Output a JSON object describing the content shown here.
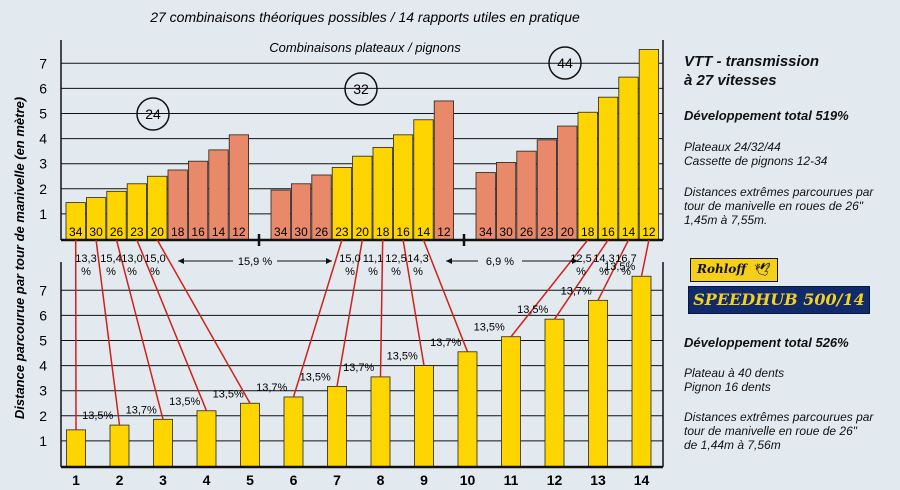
{
  "title": "27 combinaisons théoriques possibles / 14 rapports utiles en pratique",
  "top_subtitle": "Combinaisons plateaux / pignons",
  "ylabel": "Distance parcourue par tour de manivelle (en mètre)",
  "chainrings": [
    "24",
    "32",
    "44"
  ],
  "colors": {
    "useful": "#ffd500",
    "other": "#e8896a",
    "line": "#d0201c",
    "background": "#e3eaef"
  },
  "right_top": {
    "heading_line1": "VTT - transmission",
    "heading_line2": "à 27 vitesses",
    "total": "Développement total 519%",
    "spec_line1": "Plateaux 24/32/44",
    "spec_line2": "Cassette de pignons 12-34",
    "extreme_line1": "Distances extrêmes parcourues par",
    "extreme_line2": "tour de manivelle en roues de 26\"",
    "extreme_line3": "1,45m à 7,55m."
  },
  "right_bottom": {
    "logo": "Rohloff",
    "logo_icon": "bird-icon",
    "banner": "SPEEDHUB 500/14",
    "total": "Développement total 526%",
    "spec_line1": "Plateau à 40 dents",
    "spec_line2": "Pignon 16 dents",
    "extreme_line1": "Distances extrêmes parcourues par",
    "extreme_line2": "tour de manivelle en roue de 26\"",
    "extreme_line3": "de 1,44m à 7,56m"
  },
  "chart_data": [
    {
      "type": "bar",
      "name": "VTT - transmission à 27 vitesses",
      "ylim": [
        0,
        7.5
      ],
      "yticks": [
        "1",
        "2",
        "3",
        "4",
        "5",
        "6",
        "7"
      ],
      "groups": [
        {
          "chainring": "24",
          "sprockets": [
            "34",
            "30",
            "26",
            "23",
            "20",
            "18",
            "16",
            "14",
            "12"
          ],
          "values": [
            1.45,
            1.65,
            1.9,
            2.2,
            2.5,
            2.75,
            3.1,
            3.55,
            4.15
          ],
          "useful": [
            true,
            true,
            true,
            true,
            true,
            false,
            false,
            false,
            false
          ]
        },
        {
          "chainring": "32",
          "sprockets": [
            "34",
            "30",
            "26",
            "23",
            "20",
            "18",
            "16",
            "14",
            "12"
          ],
          "values": [
            1.95,
            2.2,
            2.55,
            2.85,
            3.3,
            3.65,
            4.15,
            4.75,
            5.5
          ],
          "useful": [
            false,
            false,
            false,
            true,
            true,
            true,
            true,
            true,
            false
          ]
        },
        {
          "chainring": "44",
          "sprockets": [
            "34",
            "30",
            "26",
            "23",
            "20",
            "18",
            "16",
            "14",
            "12"
          ],
          "values": [
            2.65,
            3.05,
            3.5,
            3.95,
            4.5,
            5.05,
            5.65,
            6.45,
            7.55
          ],
          "useful": [
            false,
            false,
            false,
            false,
            false,
            true,
            true,
            true,
            true
          ]
        }
      ],
      "step_labels": [
        {
          "text": "13,3\n%"
        },
        {
          "text": "15,4\n%"
        },
        {
          "text": "13,0\n%"
        },
        {
          "text": "15,0\n%"
        },
        {
          "text": "15,9 %"
        },
        {
          "text": "15,0\n%"
        },
        {
          "text": "11,1\n%"
        },
        {
          "text": "12,5\n%"
        },
        {
          "text": "14,3\n%"
        },
        {
          "text": "6,9 %"
        },
        {
          "text": "12,5\n%"
        },
        {
          "text": "14,3\n%"
        },
        {
          "text": "16,7\n%"
        }
      ]
    },
    {
      "type": "bar",
      "name": "SPEEDHUB 500/14",
      "ylim": [
        0,
        7.5
      ],
      "yticks": [
        "1",
        "2",
        "3",
        "4",
        "5",
        "6",
        "7"
      ],
      "categories": [
        "1",
        "2",
        "3",
        "4",
        "5",
        "6",
        "7",
        "8",
        "9",
        "10",
        "11",
        "12",
        "13",
        "14"
      ],
      "values": [
        1.44,
        1.63,
        1.86,
        2.2,
        2.5,
        2.75,
        3.17,
        3.55,
        4.0,
        4.55,
        5.15,
        5.85,
        6.6,
        7.56
      ],
      "step_labels": [
        "13,5%",
        "13,7%",
        "13,5%",
        "13,5%",
        "13,7%",
        "13,5%",
        "13,7%",
        "13,5%",
        "13,7%",
        "13,5%",
        "13,5%",
        "13,7%",
        "13,5%"
      ]
    }
  ]
}
